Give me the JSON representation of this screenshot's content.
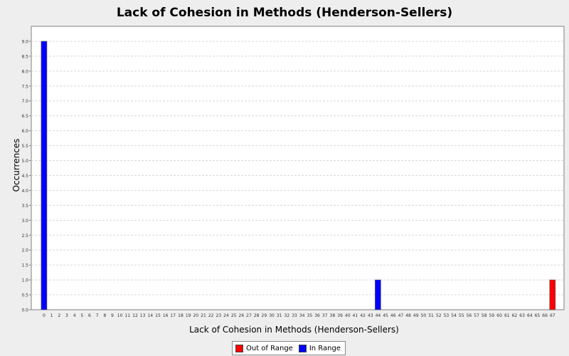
{
  "chart_data": {
    "type": "bar",
    "title": "Lack of Cohesion in Methods (Henderson-Sellers)",
    "xlabel": "Lack of Cohesion in Methods (Henderson-Sellers)",
    "ylabel": "Occurrences",
    "ylim": [
      0,
      9.5
    ],
    "yticks": [
      "0.0",
      "0.5",
      "1.0",
      "1.5",
      "2.0",
      "2.5",
      "3.0",
      "3.5",
      "4.0",
      "4.5",
      "5.0",
      "5.5",
      "6.0",
      "6.5",
      "7.0",
      "7.5",
      "8.0",
      "8.5",
      "9.0"
    ],
    "grid": true,
    "categories": [
      "0",
      "1",
      "2",
      "3",
      "4",
      "5",
      "6",
      "7",
      "8",
      "9",
      "10",
      "11",
      "12",
      "13",
      "14",
      "15",
      "16",
      "17",
      "18",
      "19",
      "20",
      "21",
      "22",
      "23",
      "24",
      "25",
      "26",
      "27",
      "28",
      "29",
      "30",
      "31",
      "32",
      "33",
      "34",
      "35",
      "36",
      "37",
      "38",
      "39",
      "40",
      "41",
      "42",
      "43",
      "44",
      "45",
      "46",
      "47",
      "48",
      "49",
      "50",
      "51",
      "52",
      "53",
      "54",
      "55",
      "56",
      "57",
      "58",
      "59",
      "60",
      "61",
      "62",
      "63",
      "64",
      "65",
      "66",
      "67"
    ],
    "series": [
      {
        "name": "Out of Range",
        "color": "#ff0000",
        "points": [
          {
            "x": "67",
            "y": 1
          }
        ]
      },
      {
        "name": "In Range",
        "color": "#0000ff",
        "points": [
          {
            "x": "0",
            "y": 9
          },
          {
            "x": "44",
            "y": 1
          }
        ]
      }
    ],
    "legend_position": "bottom"
  }
}
